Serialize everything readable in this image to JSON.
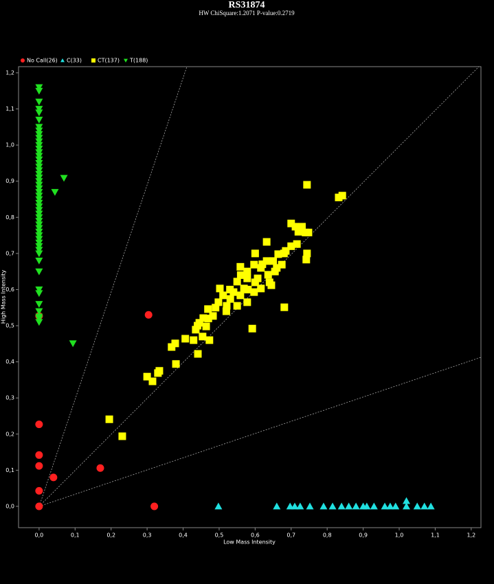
{
  "chart_data": {
    "type": "scatter",
    "title": "RS31874",
    "subtitle": "HW ChiSquare:1.2071   P-value:0.2719",
    "x_label": "Low Mass Intensity",
    "y_label": "High Mass Intensity",
    "legend": "top-left",
    "xlim": [
      -0.057,
      1.227
    ],
    "ylim": [
      -0.059,
      1.217
    ],
    "xticks": [
      {
        "value": 0,
        "label": "0,0"
      },
      {
        "value": 0.1,
        "label": "0,1"
      },
      {
        "value": 0.2,
        "label": "0,2"
      },
      {
        "value": 0.3,
        "label": "0,3"
      },
      {
        "value": 0.4,
        "label": "0,4"
      },
      {
        "value": 0.5,
        "label": "0,5"
      },
      {
        "value": 0.6,
        "label": "0,6"
      },
      {
        "value": 0.7,
        "label": "0,7"
      },
      {
        "value": 0.8,
        "label": "0,8"
      },
      {
        "value": 0.9,
        "label": "0,9"
      },
      {
        "value": 1.0,
        "label": "1,0"
      },
      {
        "value": 1.1,
        "label": "1,1"
      },
      {
        "value": 1.2,
        "label": "1,2"
      }
    ],
    "yticks": [
      {
        "value": 0,
        "label": "0,0"
      },
      {
        "value": 0.1,
        "label": "0,1"
      },
      {
        "value": 0.2,
        "label": "0,2"
      },
      {
        "value": 0.3,
        "label": "0,3"
      },
      {
        "value": 0.4,
        "label": "0,4"
      },
      {
        "value": 0.5,
        "label": "0,5"
      },
      {
        "value": 0.6,
        "label": "0,6"
      },
      {
        "value": 0.7,
        "label": "0,7"
      },
      {
        "value": 0.8,
        "label": "0,8"
      },
      {
        "value": 0.9,
        "label": "0,9"
      },
      {
        "value": 1.0,
        "label": "1,0"
      },
      {
        "value": 1.1,
        "label": "1,1"
      },
      {
        "value": 1.2,
        "label": "1,2"
      }
    ],
    "series": [
      {
        "name": "No Call(26)",
        "color": "#ff2020",
        "marker": "circle",
        "x": [
          0,
          0,
          0,
          0,
          0,
          0.04,
          0.17,
          0.304,
          0.32,
          0
        ],
        "y": [
          0,
          0.043,
          0.112,
          0.142,
          0.227,
          0.08,
          0.106,
          0.53,
          0,
          0.527
        ]
      },
      {
        "name": "C(33)",
        "color": "#20e0e0",
        "marker": "triangle-up",
        "x": [
          0.498,
          0.66,
          0.697,
          0.71,
          0.725,
          0.752,
          0.79,
          0.815,
          0.84,
          0.86,
          0.88,
          0.9,
          0.91,
          0.93,
          0.96,
          0.975,
          0.99,
          1.02,
          1.02,
          1.05,
          1.07,
          1.088
        ],
        "y": [
          0,
          0,
          0,
          0,
          0,
          0,
          0,
          0,
          0,
          0,
          0,
          0,
          0,
          0,
          0,
          0,
          0,
          0,
          0.015,
          0,
          0,
          0
        ]
      },
      {
        "name": "CT(137)",
        "color": "#ffff00",
        "marker": "square",
        "x": [
          0.744,
          0.832,
          0.842,
          0.7,
          0.712,
          0.73,
          0.74,
          0.748,
          0.716,
          0.744,
          0.742,
          0.632,
          0.632,
          0.685,
          0.664,
          0.65,
          0.674,
          0.616,
          0.597,
          0.578,
          0.559,
          0.578,
          0.607,
          0.636,
          0.655,
          0.645,
          0.616,
          0.597,
          0.569,
          0.55,
          0.54,
          0.531,
          0.511,
          0.498,
          0.521,
          0.55,
          0.578,
          0.559,
          0.469,
          0.483,
          0.456,
          0.445,
          0.464,
          0.435,
          0.454,
          0.473,
          0.406,
          0.429,
          0.378,
          0.368,
          0.441,
          0.38,
          0.33,
          0.3,
          0.315,
          0.334,
          0.592,
          0.681,
          0.195,
          0.231,
          0.502,
          0.52,
          0.49,
          0.53,
          0.56,
          0.6,
          0.62,
          0.64,
          0.66,
          0.68,
          0.7,
          0.72,
          0.58,
          0.6,
          0.47,
          0.44
        ],
        "y": [
          0.89,
          0.855,
          0.86,
          0.783,
          0.774,
          0.774,
          0.758,
          0.758,
          0.726,
          0.7,
          0.683,
          0.732,
          0.679,
          0.707,
          0.698,
          0.679,
          0.669,
          0.66,
          0.669,
          0.65,
          0.663,
          0.631,
          0.631,
          0.641,
          0.65,
          0.612,
          0.603,
          0.593,
          0.603,
          0.622,
          0.593,
          0.574,
          0.584,
          0.565,
          0.555,
          0.555,
          0.565,
          0.584,
          0.546,
          0.527,
          0.521,
          0.508,
          0.498,
          0.489,
          0.47,
          0.46,
          0.464,
          0.46,
          0.451,
          0.441,
          0.422,
          0.394,
          0.369,
          0.359,
          0.346,
          0.375,
          0.492,
          0.551,
          0.241,
          0.194,
          0.603,
          0.54,
          0.55,
          0.6,
          0.64,
          0.7,
          0.67,
          0.62,
          0.66,
          0.7,
          0.72,
          0.76,
          0.6,
          0.62,
          0.52,
          0.5
        ]
      },
      {
        "name": "T(188)",
        "color": "#20e020",
        "marker": "triangle-down",
        "x": [
          0,
          0,
          0,
          0,
          0,
          0,
          0,
          0,
          0,
          0,
          0,
          0,
          0,
          0,
          0,
          0,
          0,
          0,
          0,
          0,
          0,
          0,
          0,
          0,
          0,
          0,
          0,
          0,
          0,
          0,
          0,
          0,
          0,
          0,
          0,
          0,
          0,
          0,
          0,
          0,
          0,
          0,
          0,
          0,
          0,
          0,
          0,
          0,
          0,
          0,
          0,
          0.044,
          0.069,
          0.094
        ],
        "y": [
          0.51,
          0.52,
          0.525,
          0.54,
          0.56,
          0.59,
          0.6,
          0.65,
          0.68,
          0.7,
          0.71,
          0.72,
          0.73,
          0.74,
          0.75,
          0.76,
          0.77,
          0.78,
          0.79,
          0.8,
          0.81,
          0.82,
          0.83,
          0.84,
          0.85,
          0.86,
          0.87,
          0.88,
          0.89,
          0.9,
          0.91,
          0.92,
          0.93,
          0.94,
          0.95,
          0.96,
          0.97,
          0.98,
          0.99,
          1.0,
          1.01,
          1.02,
          1.03,
          1.04,
          1.05,
          1.07,
          1.09,
          1.1,
          1.12,
          1.15,
          1.16,
          0.87,
          0.909,
          0.451
        ]
      }
    ]
  }
}
